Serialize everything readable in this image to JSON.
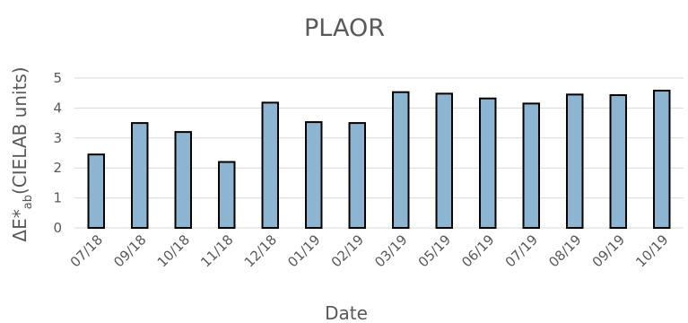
{
  "chart_data": {
    "type": "bar",
    "title": "PLAOR",
    "xlabel": "Date",
    "ylabel": {
      "prefix": "ΔE*",
      "subscript": "ab",
      "suffix": "(CIELAB units)"
    },
    "categories": [
      "07/18",
      "09/18",
      "10/18",
      "11/18",
      "12/18",
      "01/19",
      "02/19",
      "03/19",
      "05/19",
      "06/19",
      "07/19",
      "08/19",
      "09/19",
      "10/19"
    ],
    "values": [
      2.45,
      3.5,
      3.2,
      2.2,
      4.18,
      3.53,
      3.5,
      4.53,
      4.48,
      4.32,
      4.15,
      4.45,
      4.43,
      4.58
    ],
    "ylim": [
      0,
      5
    ],
    "yticks": [
      0,
      1,
      2,
      3,
      4,
      5
    ],
    "grid": true,
    "legend": "none",
    "colors": {
      "bar_fill": "#8db4d1",
      "bar_edge": "#000000",
      "text": "#595959",
      "grid": "#d9d9d9"
    }
  }
}
